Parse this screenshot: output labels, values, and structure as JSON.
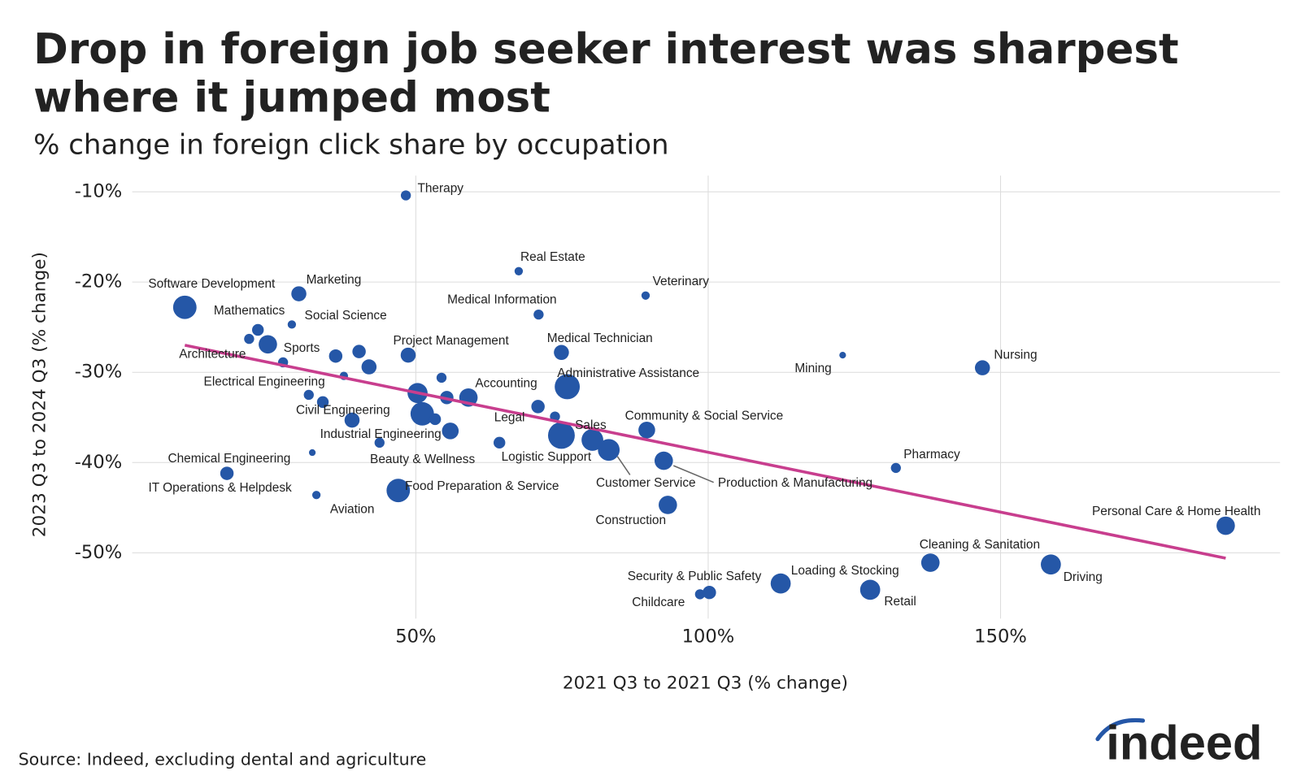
{
  "chart_data": {
    "type": "scatter",
    "title": [
      "Drop in foreign job seeker interest was sharpest",
      "where it jumped most"
    ],
    "subtitle": "% change in foreign click share by occupation",
    "x_label": "2021 Q3 to 2021 Q3 (% change)",
    "y_label": "2023 Q3 to 2024 Q3 (% change)",
    "source": "Source: Indeed, excluding dental and agriculture",
    "logo": "indeed",
    "grid": true,
    "color": "#2557a7",
    "xlim": [
      1.5,
      197.8
    ],
    "ylim": [
      -57.3,
      -8.2
    ],
    "xticks": [
      {
        "value": 50,
        "label": "50%"
      },
      {
        "value": 100,
        "label": "100%"
      },
      {
        "value": 150,
        "label": "150%"
      }
    ],
    "yticks": [
      {
        "value": -10,
        "label": "-10%"
      },
      {
        "value": -20,
        "label": "-20%"
      },
      {
        "value": -30,
        "label": "-30%"
      },
      {
        "value": -40,
        "label": "-40%"
      },
      {
        "value": -50,
        "label": "-50%"
      }
    ],
    "labels": [
      "Therapy",
      "Real Estate",
      "Veterinary",
      "Medical Information",
      "Software Development",
      "Marketing",
      "Mathematics",
      "Social Science",
      null,
      "Sports",
      "Architecture",
      null,
      null,
      null,
      "Project Management",
      "Medical Technician",
      "Mining",
      "Nursing",
      "Electrical Engineering",
      null,
      "Administrative Assistance",
      null,
      null,
      null,
      "Accounting",
      null,
      null,
      "Civil Engineering",
      null,
      null,
      null,
      "Industrial Engineering",
      "Community & Social Service",
      "Logistic Support",
      "Sales",
      "Customer Service",
      "Legal",
      "Beauty & Wellness",
      "Chemical Engineering",
      "Production & Manufacturing",
      "IT Operations & Helpdesk",
      "Pharmacy",
      "Food Preparation & Service",
      "Aviation",
      "Construction",
      "Personal Care & Home Health",
      "Cleaning & Sanitation",
      "Driving",
      "Childcare",
      "Security & Public Safety",
      "Loading & Stocking",
      "Retail"
    ],
    "x": [
      48.3,
      67.6,
      89.3,
      71.0,
      10.5,
      30.0,
      23.0,
      28.8,
      21.5,
      24.7,
      27.3,
      36.3,
      40.3,
      42.0,
      48.7,
      74.9,
      123.0,
      146.9,
      37.7,
      54.4,
      75.9,
      31.7,
      50.3,
      55.3,
      59.0,
      34.1,
      70.9,
      39.1,
      51.1,
      53.3,
      73.8,
      55.9,
      89.5,
      74.9,
      80.2,
      83.0,
      64.3,
      43.8,
      32.3,
      92.4,
      17.7,
      132.1,
      47.0,
      33.0,
      93.1,
      188.5,
      138.0,
      158.6,
      98.6,
      100.2,
      112.4,
      127.7
    ],
    "values": [
      -10.4,
      -18.8,
      -21.5,
      -23.6,
      -22.8,
      -21.3,
      -25.3,
      -24.7,
      -26.3,
      -26.9,
      -28.9,
      -28.2,
      -27.7,
      -29.4,
      -28.1,
      -27.8,
      -28.1,
      -29.5,
      -30.4,
      -30.6,
      -31.6,
      -32.5,
      -32.3,
      -32.8,
      -32.8,
      -33.3,
      -33.8,
      -35.3,
      -34.6,
      -35.2,
      -34.9,
      -36.5,
      -36.4,
      -37.0,
      -37.5,
      -38.6,
      -37.8,
      -37.8,
      -38.9,
      -39.8,
      -41.2,
      -40.6,
      -43.1,
      -43.6,
      -44.7,
      -47.0,
      -51.1,
      -51.3,
      -54.6,
      -54.4,
      -53.4,
      -54.1
    ],
    "sizes": [
      6,
      5,
      5,
      6,
      14,
      9,
      7,
      5,
      6,
      11,
      6,
      8,
      8,
      9,
      9,
      9,
      4,
      9,
      5,
      6,
      15,
      6,
      12,
      8,
      11,
      7,
      8,
      9,
      14,
      7,
      6,
      10,
      10,
      16,
      13,
      13,
      7,
      6,
      4,
      11,
      8,
      6,
      14,
      5,
      11,
      11,
      11,
      12,
      6,
      8,
      12,
      12
    ],
    "trend": {
      "x": [
        10.5,
        188.5
      ],
      "values": [
        -27.0,
        -50.6
      ],
      "color": "#c83e8e"
    }
  }
}
